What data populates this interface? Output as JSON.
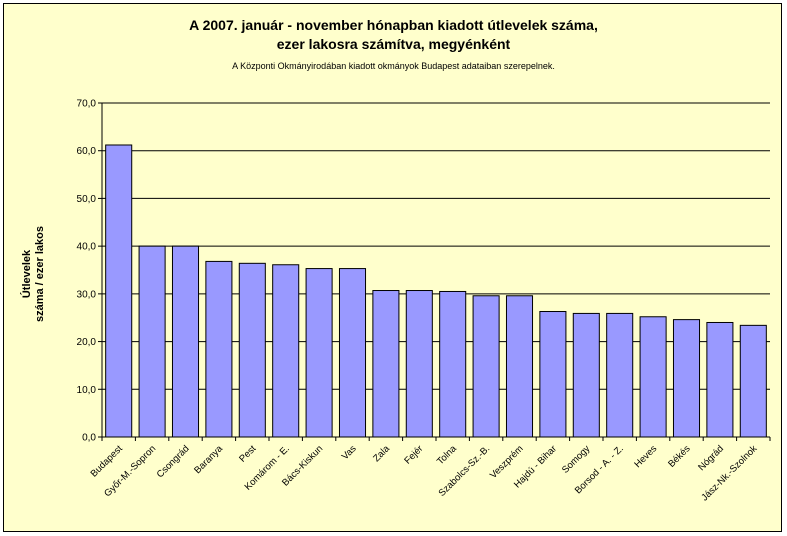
{
  "chart_data": {
    "type": "bar",
    "title_line1": "A 2007. január - november hónapban kiadott útlevelek száma,",
    "title_line2": "ezer lakosra számítva, megyénként",
    "subtitle": "A Központi Okmányirodában kiadott okmányok Budapest adataiban szerepelnek.",
    "ylabel_line1": "Útlevelek",
    "ylabel_line2": "száma / ezer lakos",
    "categories": [
      "Budapest",
      "Győr-M.-Sopron",
      "Csongrád",
      "Baranya",
      "Pest",
      "Komárom - E.",
      "Bács-Kiskun",
      "Vas",
      "Zala",
      "Fejér",
      "Tolna",
      "Szabolcs-Sz.-B.",
      "Veszprém",
      "Hajdú - Bihar",
      "Somogy",
      "Borsod - A. - Z.",
      "Heves",
      "Békés",
      "Nógrád",
      "Jász-Nk.-Szolnok"
    ],
    "values": [
      61.2,
      40.0,
      40.0,
      36.8,
      36.4,
      36.1,
      35.3,
      35.3,
      30.7,
      30.7,
      30.5,
      29.6,
      29.6,
      26.3,
      25.9,
      25.9,
      25.2,
      24.6,
      24.0,
      23.4
    ],
    "ylim": [
      0,
      70
    ],
    "yticks": [
      "0,0",
      "10,0",
      "20,0",
      "30,0",
      "40,0",
      "50,0",
      "60,0",
      "70,0"
    ],
    "ytick_values": [
      0,
      10,
      20,
      30,
      40,
      50,
      60,
      70
    ],
    "grid": true,
    "colors": {
      "background": "#ffffcc",
      "bar_fill": "#9999ff",
      "bar_stroke": "#000000",
      "grid": "#000000"
    }
  }
}
